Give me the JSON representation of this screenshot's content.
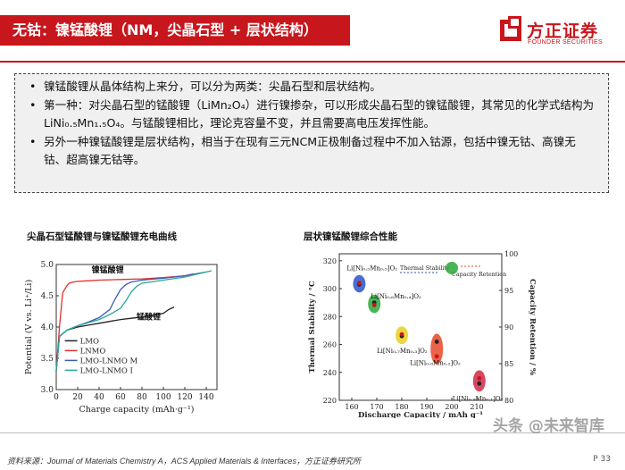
{
  "title": "无钴：镍锰酸锂（NM，尖晶石型 + 层状结构）",
  "logo": {
    "cn": "方正证券",
    "en": "FOUNDER SECURITIES"
  },
  "bullets": [
    "镍锰酸锂从晶体结构上来分，可以分为两类：尖晶石型和层状结构。",
    "第一种：对尖晶石型的锰酸锂（LiMn₂O₄）进行镍掺杂，可以形成尖晶石型的镍锰酸锂，其常见的化学式结构为LiNi₀.₅Mn₁.₅O₄。与锰酸锂相比，理论克容量不变，并且需要高电压发挥性能。",
    "另外一种镍锰酸锂是层状结构，相当于在现有三元NCM正极制备过程中不加入钴源，包括中镍无钴、高镍无钴、超高镍无钴等。"
  ],
  "caption_left": "尖晶石型锰酸锂与镍锰酸锂充电曲线",
  "caption_right": "层状镍锰酸锂综合性能",
  "chart_data": [
    {
      "type": "line",
      "xlabel": "Charge capacity (mAh·g⁻¹)",
      "ylabel": "Potential (V vs. Li⁺/Li)",
      "xlim": [
        0,
        150
      ],
      "ylim": [
        3.0,
        5.0
      ],
      "xticks": [
        "0",
        "20",
        "40",
        "60",
        "80",
        "100",
        "120",
        "140"
      ],
      "yticks": [
        "3.0",
        "3.5",
        "4.0",
        "4.5",
        "5.0"
      ],
      "annotations": [
        "镍锰酸锂",
        "锰酸锂"
      ],
      "series": [
        {
          "name": "LMO",
          "color": "#222222",
          "x": [
            0,
            3,
            10,
            20,
            30,
            40,
            50,
            60,
            70,
            80,
            90,
            100,
            105,
            110
          ],
          "y": [
            3.3,
            3.85,
            3.95,
            4.0,
            4.03,
            4.06,
            4.09,
            4.12,
            4.14,
            4.16,
            4.18,
            4.22,
            4.28,
            4.32
          ]
        },
        {
          "name": "LNMO",
          "color": "#e03030",
          "x": [
            0,
            3,
            6,
            10,
            12,
            16,
            20,
            30,
            40,
            60,
            80,
            100,
            120,
            128
          ],
          "y": [
            3.3,
            4.0,
            4.55,
            4.66,
            4.7,
            4.72,
            4.73,
            4.74,
            4.75,
            4.76,
            4.77,
            4.79,
            4.82,
            4.85
          ]
        },
        {
          "name": "LMO-LNMO M",
          "color": "#3a5db0",
          "x": [
            0,
            3,
            10,
            20,
            30,
            40,
            50,
            55,
            60,
            65,
            70,
            80,
            100,
            120,
            140
          ],
          "y": [
            3.3,
            3.85,
            3.95,
            4.02,
            4.08,
            4.15,
            4.28,
            4.45,
            4.6,
            4.68,
            4.72,
            4.75,
            4.78,
            4.82,
            4.88
          ]
        },
        {
          "name": "LMO-LNMO I",
          "color": "#2aa59a",
          "x": [
            0,
            3,
            10,
            20,
            30,
            40,
            50,
            60,
            65,
            70,
            75,
            80,
            100,
            120,
            145
          ],
          "y": [
            3.3,
            3.85,
            3.95,
            4.02,
            4.07,
            4.12,
            4.2,
            4.3,
            4.42,
            4.56,
            4.65,
            4.7,
            4.75,
            4.8,
            4.9
          ]
        }
      ]
    },
    {
      "type": "scatter",
      "xlabel": "Discharge Capacity / mAh g⁻¹",
      "ylabel_left": "Thermal Stability / °C",
      "ylabel_right": "Capacity Retention / %",
      "xlim": [
        155,
        220
      ],
      "ylim_left": [
        220,
        325
      ],
      "ylim_right": [
        80,
        100
      ],
      "xticks": [
        "160",
        "170",
        "180",
        "190",
        "200",
        "210"
      ],
      "yticks_left": [
        "220",
        "240",
        "260",
        "280",
        "300",
        "320"
      ],
      "yticks_right": [
        "80",
        "85",
        "90",
        "95",
        "100"
      ],
      "legend": [
        "Thermal Stability",
        "Capacity Retention"
      ],
      "points": [
        {
          "label": "Li[Ni₀.₅Mn₀.₅]O₂",
          "x": 163,
          "thermal": 303,
          "retention": 96,
          "color": "#2a55c8"
        },
        {
          "label": "Li[Ni₀.₆Mn₀.₄]O₂",
          "x": 169,
          "thermal": 290,
          "retention": 93,
          "color": "#2aa838"
        },
        {
          "label": "Li[Ni₀.₇Mn₀.₃]O₂",
          "x": 180,
          "thermal": 266,
          "retention": 89,
          "color": "#e8d020"
        },
        {
          "label": "Li[Ni₀.₈Mn₀.₂]O₂",
          "x": 194,
          "thermal": 262,
          "retention": 86,
          "color": "#e84828"
        },
        {
          "label": "Li[Ni₀.₉Mn₀.₁]O₂",
          "x": 211,
          "thermal": 232,
          "retention": 83,
          "color": "#d02848"
        }
      ]
    }
  ],
  "footer": "资料来源：Journal of Materials Chemistry A，ACS Applied Materials & Interfaces，方正证券研究所",
  "page": "P 33",
  "watermark": "头条 @未来智库"
}
